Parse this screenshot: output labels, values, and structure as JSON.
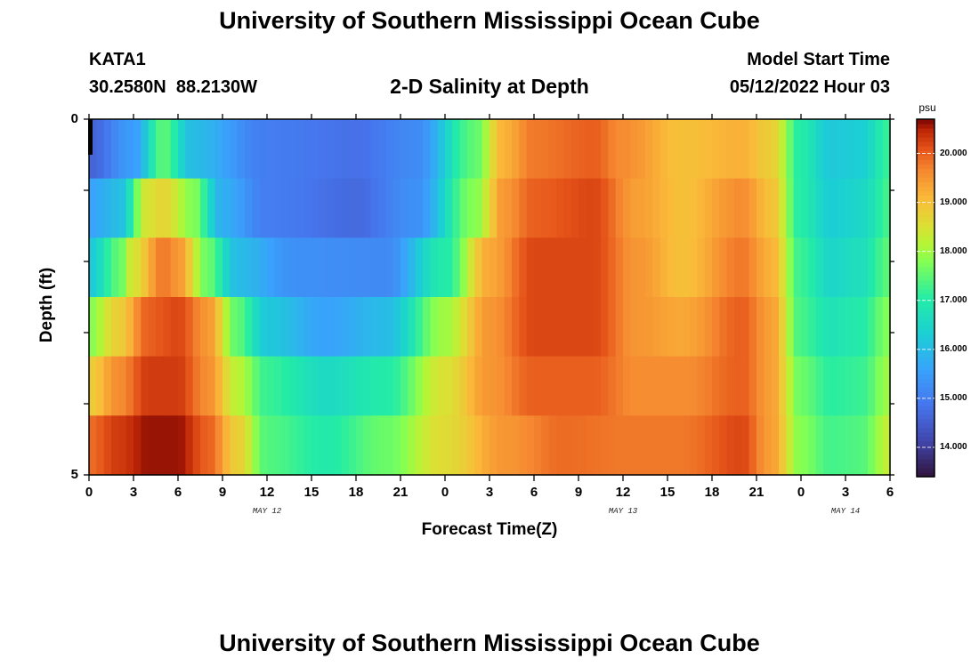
{
  "page": {
    "title": "University of Southern Mississippi Ocean Cube",
    "footer_title": "University of Southern Mississippi Ocean Cube",
    "station_id": "KATA1",
    "coordinates": "30.2580N  88.2130W",
    "plot_title": "2-D Salinity at Depth",
    "model_start_label": "Model Start Time",
    "model_start_value": "05/12/2022 Hour 03"
  },
  "chart_data": {
    "type": "heatmap",
    "title": "2-D Salinity at Depth",
    "xlabel": "Forecast Time(Z)",
    "ylabel": "Depth (ft)",
    "x_hours": [
      0,
      54
    ],
    "x_tick_labels": [
      "0",
      "3",
      "6",
      "9",
      "12",
      "15",
      "18",
      "21",
      "0",
      "3",
      "6",
      "9",
      "12",
      "15",
      "18",
      "21",
      "0",
      "3",
      "6"
    ],
    "x_tick_hours": [
      0,
      3,
      6,
      9,
      12,
      15,
      18,
      21,
      24,
      27,
      30,
      33,
      36,
      39,
      42,
      45,
      48,
      51,
      54
    ],
    "date_labels": [
      {
        "text": "MAY 12",
        "hour": 12
      },
      {
        "text": "MAY 13",
        "hour": 36
      },
      {
        "text": "MAY 14",
        "hour": 51
      }
    ],
    "y_range": [
      0,
      5
    ],
    "y_tick_labels": [
      "0",
      "5"
    ],
    "y_tick_values": [
      0,
      5
    ],
    "depth_rows": [
      0,
      1,
      2,
      3,
      4,
      5
    ],
    "colorbar": {
      "unit": "psu",
      "range": [
        13.4,
        20.7
      ],
      "tick_values": [
        14,
        15,
        16,
        17,
        18,
        19,
        20
      ],
      "tick_labels": [
        "14.000",
        "15.000",
        "16.000",
        "17.000",
        "18.000",
        "19.000",
        "20.000"
      ]
    },
    "series": [
      {
        "name": "depth 0 ft",
        "knots": [
          [
            0,
            14.6
          ],
          [
            3,
            15.5
          ],
          [
            5,
            17.5
          ],
          [
            7,
            16.0
          ],
          [
            12,
            15.0
          ],
          [
            18,
            14.8
          ],
          [
            22,
            15.2
          ],
          [
            26,
            17.5
          ],
          [
            28,
            19.2
          ],
          [
            30,
            19.8
          ],
          [
            34,
            20.0
          ],
          [
            36,
            19.6
          ],
          [
            40,
            19.0
          ],
          [
            44,
            19.2
          ],
          [
            46,
            18.8
          ],
          [
            48,
            17.0
          ],
          [
            50,
            16.2
          ],
          [
            52,
            16.3
          ],
          [
            54,
            17.2
          ]
        ]
      },
      {
        "name": "depth 1 ft",
        "knots": [
          [
            0,
            15.6
          ],
          [
            2,
            16.0
          ],
          [
            4,
            18.5
          ],
          [
            5,
            18.7
          ],
          [
            7,
            17.8
          ],
          [
            9,
            15.8
          ],
          [
            12,
            15.0
          ],
          [
            18,
            14.7
          ],
          [
            22,
            15.3
          ],
          [
            26,
            17.8
          ],
          [
            28,
            19.5
          ],
          [
            30,
            20.0
          ],
          [
            34,
            20.2
          ],
          [
            37,
            19.4
          ],
          [
            40,
            19.0
          ],
          [
            44,
            19.6
          ],
          [
            46,
            19.0
          ],
          [
            48,
            17.0
          ],
          [
            50,
            16.3
          ],
          [
            52,
            16.5
          ],
          [
            54,
            17.3
          ]
        ]
      },
      {
        "name": "depth 2 ft",
        "knots": [
          [
            0,
            16.2
          ],
          [
            2,
            17.5
          ],
          [
            3,
            18.5
          ],
          [
            5,
            19.8
          ],
          [
            6,
            19.5
          ],
          [
            8,
            17.6
          ],
          [
            10,
            16.0
          ],
          [
            14,
            15.3
          ],
          [
            20,
            15.2
          ],
          [
            24,
            17.0
          ],
          [
            27,
            19.3
          ],
          [
            30,
            20.2
          ],
          [
            34,
            20.2
          ],
          [
            37,
            19.5
          ],
          [
            40,
            19.0
          ],
          [
            44,
            19.8
          ],
          [
            46,
            19.2
          ],
          [
            48,
            17.2
          ],
          [
            50,
            16.5
          ],
          [
            52,
            16.7
          ],
          [
            54,
            17.5
          ]
        ]
      },
      {
        "name": "depth 3 ft",
        "knots": [
          [
            0,
            17.8
          ],
          [
            2,
            18.8
          ],
          [
            4,
            20.0
          ],
          [
            6,
            20.2
          ],
          [
            8,
            19.5
          ],
          [
            10,
            17.5
          ],
          [
            12,
            16.2
          ],
          [
            16,
            15.6
          ],
          [
            20,
            16.0
          ],
          [
            24,
            18.0
          ],
          [
            27,
            19.5
          ],
          [
            30,
            20.2
          ],
          [
            34,
            20.2
          ],
          [
            37,
            19.5
          ],
          [
            40,
            19.3
          ],
          [
            44,
            20.0
          ],
          [
            46,
            19.4
          ],
          [
            48,
            17.3
          ],
          [
            50,
            16.8
          ],
          [
            52,
            17.0
          ],
          [
            54,
            17.8
          ]
        ]
      },
      {
        "name": "depth 4 ft",
        "knots": [
          [
            0,
            18.8
          ],
          [
            2,
            19.6
          ],
          [
            4,
            20.3
          ],
          [
            6,
            20.3
          ],
          [
            8,
            19.6
          ],
          [
            10,
            18.2
          ],
          [
            12,
            17.2
          ],
          [
            16,
            16.6
          ],
          [
            20,
            17.0
          ],
          [
            24,
            18.5
          ],
          [
            27,
            19.5
          ],
          [
            30,
            20.0
          ],
          [
            34,
            20.0
          ],
          [
            37,
            19.6
          ],
          [
            40,
            19.6
          ],
          [
            44,
            20.0
          ],
          [
            46,
            19.4
          ],
          [
            48,
            17.6
          ],
          [
            50,
            17.1
          ],
          [
            52,
            17.2
          ],
          [
            54,
            18.0
          ]
        ]
      },
      {
        "name": "depth 5 ft",
        "knots": [
          [
            0,
            19.9
          ],
          [
            2,
            20.3
          ],
          [
            4,
            20.6
          ],
          [
            6,
            20.6
          ],
          [
            8,
            20.0
          ],
          [
            10,
            18.8
          ],
          [
            12,
            17.4
          ],
          [
            16,
            17.0
          ],
          [
            20,
            17.6
          ],
          [
            24,
            18.6
          ],
          [
            28,
            19.5
          ],
          [
            32,
            19.9
          ],
          [
            36,
            19.8
          ],
          [
            40,
            19.8
          ],
          [
            44,
            20.2
          ],
          [
            46,
            19.4
          ],
          [
            48,
            17.8
          ],
          [
            50,
            17.3
          ],
          [
            52,
            17.4
          ],
          [
            54,
            18.3
          ]
        ]
      }
    ]
  }
}
